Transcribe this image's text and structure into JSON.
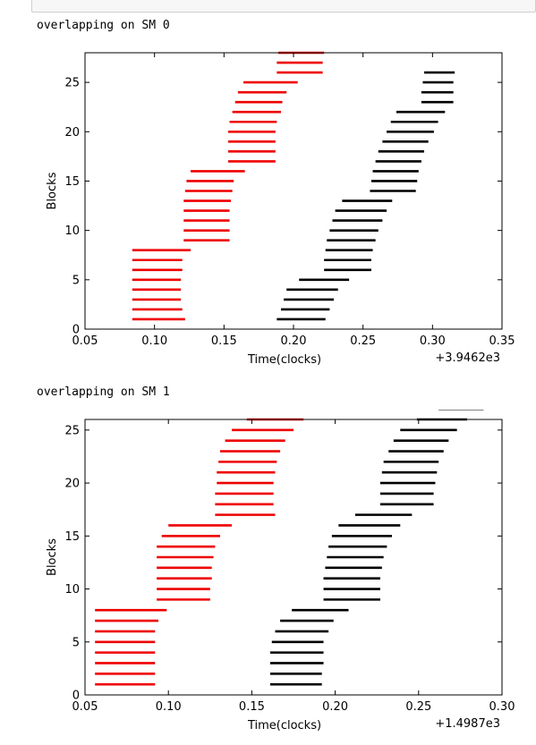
{
  "outputs": [
    {
      "label": "overlapping on SM 0"
    },
    {
      "label": "overlapping on SM 1"
    }
  ],
  "chart_data": [
    {
      "type": "bar",
      "title": "",
      "xlabel": "Time(clocks)",
      "ylabel": "Blocks",
      "offset_text": "+3.9462e3",
      "xlim": [
        0.05,
        0.35
      ],
      "ylim": [
        0,
        28
      ],
      "xticks": [
        "0.05",
        "0.10",
        "0.15",
        "0.20",
        "0.25",
        "0.30",
        "0.35"
      ],
      "yticks": [
        "0",
        "5",
        "10",
        "15",
        "20",
        "25"
      ],
      "series": [
        {
          "color": "#ee0000",
          "segments": [
            [
              1,
              0.084,
              0.122
            ],
            [
              2,
              0.084,
              0.12
            ],
            [
              3,
              0.084,
              0.119
            ],
            [
              4,
              0.084,
              0.119
            ],
            [
              5,
              0.084,
              0.119
            ],
            [
              6,
              0.084,
              0.12
            ],
            [
              7,
              0.084,
              0.12
            ],
            [
              8,
              0.084,
              0.126
            ],
            [
              9,
              0.121,
              0.154
            ],
            [
              10,
              0.121,
              0.154
            ],
            [
              11,
              0.121,
              0.154
            ],
            [
              12,
              0.121,
              0.154
            ],
            [
              13,
              0.121,
              0.155
            ],
            [
              14,
              0.122,
              0.156
            ],
            [
              15,
              0.123,
              0.157
            ],
            [
              16,
              0.126,
              0.165
            ],
            [
              17,
              0.153,
              0.187
            ],
            [
              18,
              0.153,
              0.187
            ],
            [
              19,
              0.153,
              0.187
            ],
            [
              20,
              0.153,
              0.187
            ],
            [
              21,
              0.154,
              0.188
            ],
            [
              22,
              0.156,
              0.191
            ],
            [
              23,
              0.158,
              0.192
            ],
            [
              24,
              0.16,
              0.195
            ],
            [
              25,
              0.164,
              0.203
            ],
            [
              26,
              0.188,
              0.221
            ],
            [
              27,
              0.188,
              0.221
            ],
            [
              28,
              0.189,
              0.222
            ]
          ]
        },
        {
          "color": "#000000",
          "segments": [
            [
              1,
              0.188,
              0.223
            ],
            [
              2,
              0.191,
              0.226
            ],
            [
              3,
              0.193,
              0.229
            ],
            [
              4,
              0.195,
              0.232
            ],
            [
              5,
              0.204,
              0.24
            ],
            [
              6,
              0.222,
              0.256
            ],
            [
              7,
              0.222,
              0.256
            ],
            [
              8,
              0.223,
              0.257
            ],
            [
              9,
              0.224,
              0.259
            ],
            [
              10,
              0.226,
              0.261
            ],
            [
              11,
              0.228,
              0.264
            ],
            [
              12,
              0.23,
              0.267
            ],
            [
              13,
              0.235,
              0.271
            ],
            [
              14,
              0.255,
              0.288
            ],
            [
              15,
              0.256,
              0.289
            ],
            [
              16,
              0.257,
              0.29
            ],
            [
              17,
              0.259,
              0.292
            ],
            [
              18,
              0.261,
              0.294
            ],
            [
              19,
              0.264,
              0.297
            ],
            [
              20,
              0.267,
              0.301
            ],
            [
              21,
              0.27,
              0.304
            ],
            [
              22,
              0.274,
              0.309
            ],
            [
              23,
              0.292,
              0.315
            ],
            [
              24,
              0.292,
              0.315
            ],
            [
              25,
              0.293,
              0.315
            ],
            [
              26,
              0.294,
              0.316
            ]
          ]
        }
      ]
    },
    {
      "type": "bar",
      "title": "",
      "xlabel": "Time(clocks)",
      "ylabel": "Blocks",
      "offset_text": "+1.4987e3",
      "xlim": [
        0.05,
        0.3
      ],
      "ylim": [
        0,
        26
      ],
      "xticks": [
        "0.05",
        "0.10",
        "0.15",
        "0.20",
        "0.25",
        "0.30"
      ],
      "yticks": [
        "0",
        "5",
        "10",
        "15",
        "20",
        "25"
      ],
      "series": [
        {
          "color": "#ee0000",
          "segments": [
            [
              1,
              0.056,
              0.092
            ],
            [
              2,
              0.056,
              0.092
            ],
            [
              3,
              0.056,
              0.092
            ],
            [
              4,
              0.056,
              0.092
            ],
            [
              5,
              0.056,
              0.092
            ],
            [
              6,
              0.056,
              0.092
            ],
            [
              7,
              0.056,
              0.094
            ],
            [
              8,
              0.056,
              0.099
            ],
            [
              9,
              0.093,
              0.125
            ],
            [
              10,
              0.093,
              0.125
            ],
            [
              11,
              0.093,
              0.126
            ],
            [
              12,
              0.093,
              0.126
            ],
            [
              13,
              0.093,
              0.127
            ],
            [
              14,
              0.093,
              0.128
            ],
            [
              15,
              0.096,
              0.131
            ],
            [
              16,
              0.1,
              0.138
            ],
            [
              17,
              0.128,
              0.164
            ],
            [
              18,
              0.128,
              0.163
            ],
            [
              19,
              0.128,
              0.163
            ],
            [
              20,
              0.129,
              0.163
            ],
            [
              21,
              0.129,
              0.164
            ],
            [
              22,
              0.13,
              0.165
            ],
            [
              23,
              0.131,
              0.167
            ],
            [
              24,
              0.134,
              0.17
            ],
            [
              25,
              0.138,
              0.175
            ],
            [
              26,
              0.147,
              0.181
            ]
          ]
        },
        {
          "color": "#000000",
          "segments": [
            [
              1,
              0.161,
              0.192
            ],
            [
              2,
              0.161,
              0.192
            ],
            [
              3,
              0.161,
              0.193
            ],
            [
              4,
              0.161,
              0.193
            ],
            [
              5,
              0.162,
              0.193
            ],
            [
              6,
              0.164,
              0.196
            ],
            [
              7,
              0.167,
              0.199
            ],
            [
              8,
              0.174,
              0.208
            ],
            [
              9,
              0.193,
              0.227
            ],
            [
              10,
              0.193,
              0.227
            ],
            [
              11,
              0.193,
              0.227
            ],
            [
              12,
              0.194,
              0.228
            ],
            [
              13,
              0.195,
              0.229
            ],
            [
              14,
              0.196,
              0.231
            ],
            [
              15,
              0.198,
              0.234
            ],
            [
              16,
              0.202,
              0.239
            ],
            [
              17,
              0.212,
              0.246
            ],
            [
              18,
              0.227,
              0.259
            ],
            [
              19,
              0.227,
              0.259
            ],
            [
              20,
              0.227,
              0.26
            ],
            [
              21,
              0.228,
              0.261
            ],
            [
              22,
              0.229,
              0.262
            ],
            [
              23,
              0.232,
              0.265
            ],
            [
              24,
              0.235,
              0.268
            ],
            [
              25,
              0.239,
              0.273
            ],
            [
              26,
              0.249,
              0.279
            ],
            [
              27,
              0.262,
              0.289
            ],
            [
              28,
              0.262,
              0.287
            ]
          ]
        }
      ]
    }
  ]
}
